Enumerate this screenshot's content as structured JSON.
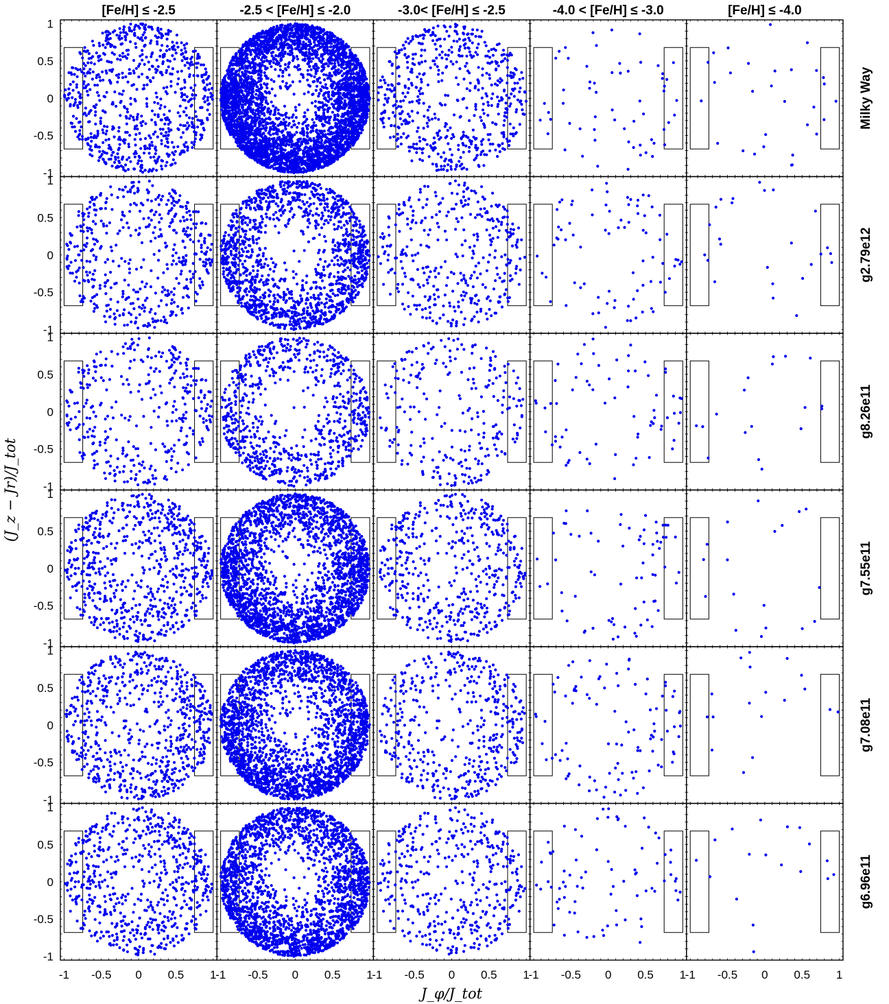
{
  "chart_data": {
    "type": "scatter",
    "layout": "grid",
    "columns": [
      "[Fe/H] ≤ -2.5",
      "-2.5 < [Fe/H] ≤ -2.0",
      "-3.0< [Fe/H] ≤ -2.5",
      "-4.0 < [Fe/H] ≤ -3.0",
      "[Fe/H] ≤ -4.0"
    ],
    "rows": [
      "Milky Way",
      "g2.79e12",
      "g8.26e11",
      "g7.55e11",
      "g7.08e11",
      "g6.96e11"
    ],
    "xlabel": "J_φ/J_tot",
    "ylabel": "(J_z − Jr)/J_tot",
    "xlim": [
      -1.05,
      1.05
    ],
    "ylim": [
      -1.05,
      1.05
    ],
    "xticks": [
      -1,
      -0.5,
      0,
      0.5,
      1
    ],
    "xtick_labels": [
      "-1",
      "-0.5",
      "0",
      "0.5",
      "1"
    ],
    "yticks": [
      1,
      0.5,
      0,
      -0.5,
      -1
    ],
    "ytick_labels": [
      "1",
      "0.5",
      "0",
      "-0.5",
      "-1"
    ],
    "selection_boxes": [
      {
        "x": [
          -1.0,
          -0.75
        ],
        "y": [
          -0.68,
          0.68
        ]
      },
      {
        "x": [
          0.75,
          1.0
        ],
        "y": [
          -0.68,
          0.68
        ]
      }
    ],
    "point_color": "#0000ee",
    "envelope": "unit circle (x² + y² ≤ 1)",
    "approx_point_counts": [
      [
        800,
        5000,
        600,
        60,
        30
      ],
      [
        500,
        1500,
        380,
        80,
        25
      ],
      [
        360,
        800,
        260,
        70,
        18
      ],
      [
        700,
        2500,
        500,
        70,
        18
      ],
      [
        700,
        2400,
        460,
        100,
        18
      ],
      [
        650,
        2300,
        420,
        80,
        18
      ]
    ]
  }
}
